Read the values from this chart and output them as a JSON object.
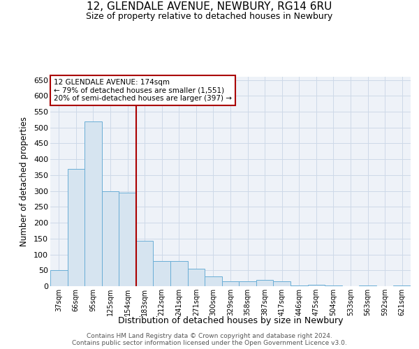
{
  "title": "12, GLENDALE AVENUE, NEWBURY, RG14 6RU",
  "subtitle": "Size of property relative to detached houses in Newbury",
  "xlabel": "Distribution of detached houses by size in Newbury",
  "ylabel": "Number of detached properties",
  "footer1": "Contains HM Land Registry data © Crown copyright and database right 2024.",
  "footer2": "Contains public sector information licensed under the Open Government Licence v3.0.",
  "annotation_line1": "12 GLENDALE AVENUE: 174sqm",
  "annotation_line2": "← 79% of detached houses are smaller (1,551)",
  "annotation_line3": "20% of semi-detached houses are larger (397) →",
  "bar_color": "#d6e4f0",
  "bar_edge_color": "#6aaed6",
  "vline_color": "#aa0000",
  "vline_x_index": 5,
  "categories": [
    "37sqm",
    "66sqm",
    "95sqm",
    "125sqm",
    "154sqm",
    "183sqm",
    "212sqm",
    "241sqm",
    "271sqm",
    "300sqm",
    "329sqm",
    "358sqm",
    "387sqm",
    "417sqm",
    "446sqm",
    "475sqm",
    "504sqm",
    "533sqm",
    "563sqm",
    "592sqm",
    "621sqm"
  ],
  "values": [
    50,
    370,
    520,
    300,
    295,
    143,
    80,
    80,
    55,
    30,
    15,
    15,
    20,
    15,
    2,
    5,
    2,
    0,
    2,
    0,
    2
  ],
  "ylim": [
    0,
    660
  ],
  "yticks": [
    0,
    50,
    100,
    150,
    200,
    250,
    300,
    350,
    400,
    450,
    500,
    550,
    600,
    650
  ],
  "grid_color": "#cdd9e8",
  "background_color": "#eef2f8",
  "figsize": [
    6.0,
    5.0
  ],
  "dpi": 100
}
